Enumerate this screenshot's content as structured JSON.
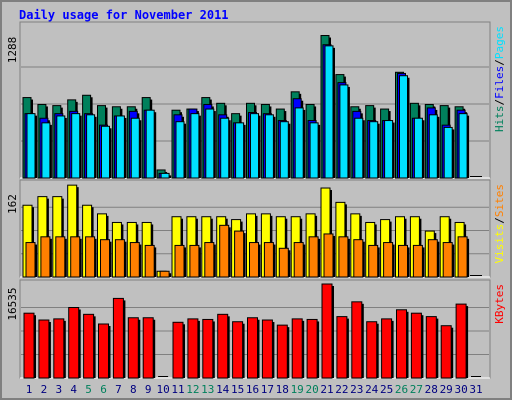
{
  "title": "Daily usage for November 2011",
  "colors": {
    "hits": "#00805c",
    "files": "#0000ff",
    "pages": "#00e0ff",
    "visits": "#ffff00",
    "sites": "#ff8000",
    "kbytes": "#ff0000",
    "weekend_day_label": "#00805c",
    "weekday_day_label": "#000080",
    "background": "#c0c0c0"
  },
  "chart_data": [
    {
      "type": "bar",
      "panel": "hits",
      "ymax_label": "1288",
      "ymax": 1288,
      "grid": true,
      "right_labels": [
        {
          "text": "Hits",
          "color": "#00805c"
        },
        {
          "text": "Files",
          "color": "#0000ff"
        },
        {
          "text": "Pages",
          "color": "#00e0ff"
        }
      ],
      "categories": [
        "1",
        "2",
        "3",
        "4",
        "5",
        "6",
        "7",
        "8",
        "9",
        "10",
        "11",
        "12",
        "13",
        "14",
        "15",
        "16",
        "17",
        "18",
        "19",
        "20",
        "21",
        "22",
        "23",
        "24",
        "25",
        "26",
        "27",
        "28",
        "29",
        "30",
        "31"
      ],
      "series": [
        {
          "name": "Hits",
          "color": "#00805c",
          "values": [
            700,
            640,
            630,
            680,
            720,
            630,
            620,
            620,
            700,
            70,
            590,
            600,
            700,
            650,
            560,
            650,
            640,
            600,
            750,
            640,
            1240,
            900,
            620,
            630,
            600,
            920,
            650,
            640,
            630,
            620,
            0
          ]
        },
        {
          "name": "Files",
          "color": "#0000ff",
          "values": [
            560,
            520,
            560,
            580,
            560,
            460,
            540,
            580,
            590,
            40,
            550,
            600,
            640,
            550,
            480,
            570,
            560,
            500,
            690,
            500,
            1160,
            830,
            580,
            500,
            500,
            910,
            520,
            610,
            460,
            590,
            0
          ]
        },
        {
          "name": "Pages",
          "color": "#00e0ff",
          "values": [
            560,
            480,
            540,
            560,
            550,
            450,
            540,
            520,
            590,
            40,
            490,
            560,
            600,
            520,
            480,
            560,
            550,
            490,
            610,
            480,
            1150,
            810,
            520,
            490,
            500,
            890,
            520,
            550,
            440,
            560,
            0
          ]
        }
      ]
    },
    {
      "type": "bar",
      "panel": "visits",
      "ymax_label": "162",
      "ymax": 162,
      "grid": true,
      "right_labels": [
        {
          "text": "Visits",
          "color": "#ffff00"
        },
        {
          "text": "Sites",
          "color": "#ff8000"
        }
      ],
      "categories": [
        "1",
        "2",
        "3",
        "4",
        "5",
        "6",
        "7",
        "8",
        "9",
        "10",
        "11",
        "12",
        "13",
        "14",
        "15",
        "16",
        "17",
        "18",
        "19",
        "20",
        "21",
        "22",
        "23",
        "24",
        "25",
        "26",
        "27",
        "28",
        "29",
        "30",
        "31"
      ],
      "series": [
        {
          "name": "Visits",
          "color": "#ffff00",
          "values": [
            125,
            140,
            140,
            160,
            125,
            110,
            95,
            95,
            95,
            10,
            105,
            105,
            105,
            105,
            100,
            110,
            110,
            105,
            105,
            110,
            155,
            130,
            110,
            95,
            100,
            105,
            105,
            80,
            105,
            95,
            0
          ]
        },
        {
          "name": "Sites",
          "color": "#ff8000",
          "values": [
            60,
            70,
            70,
            70,
            70,
            65,
            65,
            60,
            55,
            10,
            55,
            55,
            60,
            90,
            80,
            60,
            60,
            50,
            60,
            70,
            75,
            70,
            65,
            55,
            60,
            55,
            55,
            65,
            60,
            70,
            0
          ]
        }
      ]
    },
    {
      "type": "bar",
      "panel": "kbytes",
      "ymax_label": "16535",
      "ymax": 16535,
      "grid": true,
      "right_labels": [
        {
          "text": "KBytes",
          "color": "#ff0000"
        }
      ],
      "categories": [
        "1",
        "2",
        "3",
        "4",
        "5",
        "6",
        "7",
        "8",
        "9",
        "10",
        "11",
        "12",
        "13",
        "14",
        "15",
        "16",
        "17",
        "18",
        "19",
        "20",
        "21",
        "22",
        "23",
        "24",
        "25",
        "26",
        "27",
        "28",
        "29",
        "30",
        "31"
      ],
      "series": [
        {
          "name": "KBytes",
          "color": "#ff0000",
          "values": [
            11400,
            10200,
            10400,
            12400,
            11200,
            9500,
            14000,
            10600,
            10600,
            0,
            9800,
            10400,
            10300,
            11200,
            9900,
            10600,
            10200,
            9300,
            10400,
            10300,
            16535,
            10800,
            13400,
            9900,
            10400,
            12000,
            11400,
            10800,
            9200,
            13000,
            0
          ]
        }
      ]
    }
  ],
  "x_days": [
    {
      "day": "1",
      "weekend": false
    },
    {
      "day": "2",
      "weekend": false
    },
    {
      "day": "3",
      "weekend": false
    },
    {
      "day": "4",
      "weekend": false
    },
    {
      "day": "5",
      "weekend": true
    },
    {
      "day": "6",
      "weekend": true
    },
    {
      "day": "7",
      "weekend": false
    },
    {
      "day": "8",
      "weekend": false
    },
    {
      "day": "9",
      "weekend": false
    },
    {
      "day": "10",
      "weekend": false
    },
    {
      "day": "11",
      "weekend": false
    },
    {
      "day": "12",
      "weekend": true
    },
    {
      "day": "13",
      "weekend": true
    },
    {
      "day": "14",
      "weekend": false
    },
    {
      "day": "15",
      "weekend": false
    },
    {
      "day": "16",
      "weekend": false
    },
    {
      "day": "17",
      "weekend": false
    },
    {
      "day": "18",
      "weekend": false
    },
    {
      "day": "19",
      "weekend": true
    },
    {
      "day": "20",
      "weekend": true
    },
    {
      "day": "21",
      "weekend": false
    },
    {
      "day": "22",
      "weekend": false
    },
    {
      "day": "23",
      "weekend": false
    },
    {
      "day": "24",
      "weekend": false
    },
    {
      "day": "25",
      "weekend": false
    },
    {
      "day": "26",
      "weekend": true
    },
    {
      "day": "27",
      "weekend": true
    },
    {
      "day": "28",
      "weekend": false
    },
    {
      "day": "29",
      "weekend": false
    },
    {
      "day": "30",
      "weekend": false
    },
    {
      "day": "31",
      "weekend": false
    }
  ]
}
